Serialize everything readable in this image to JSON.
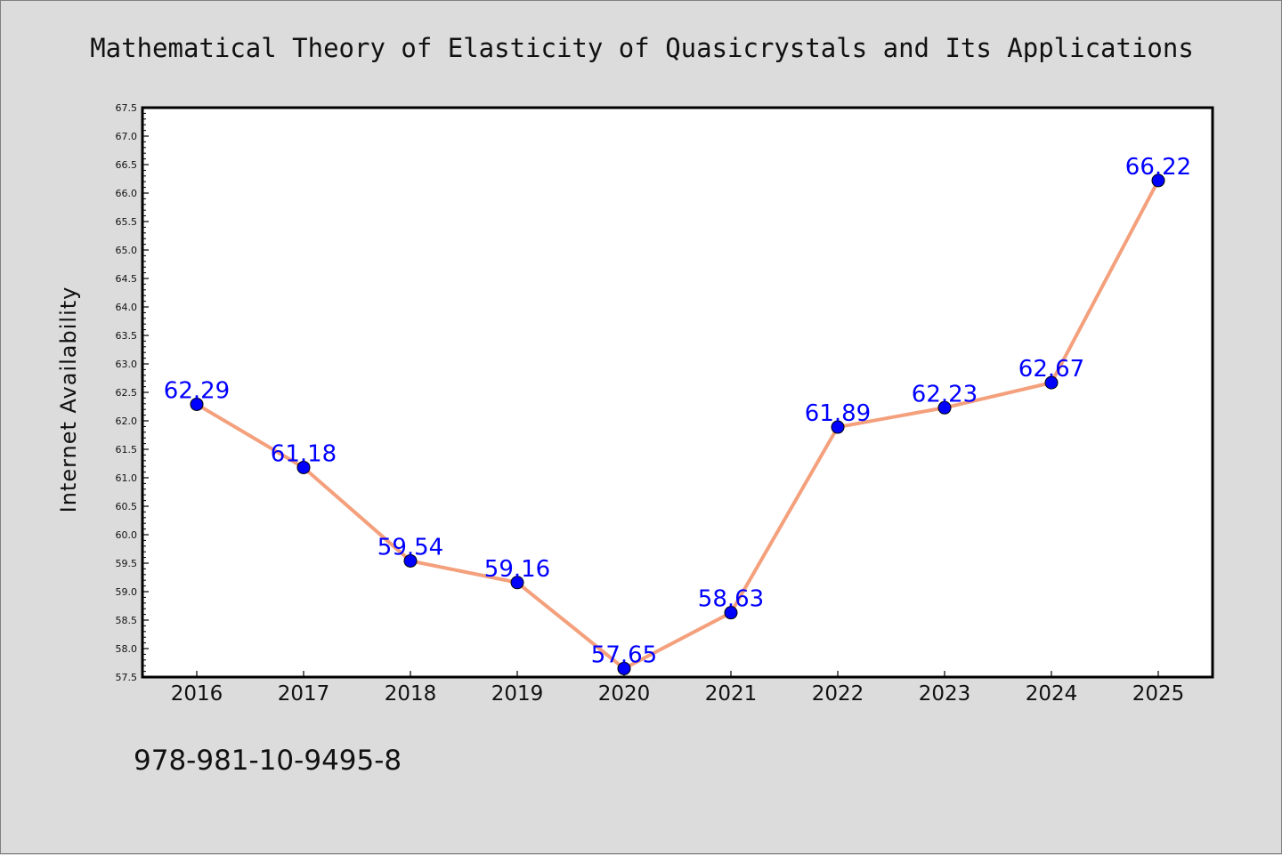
{
  "isbn": "978-981-10-9495-8",
  "colors": {
    "background": "#dcdcdc",
    "plot_background": "#ffffff",
    "line": "#f4a07c",
    "marker": "#0000ff",
    "label": "#0000ff"
  },
  "chart_data": {
    "type": "line",
    "title": "Mathematical Theory of Elasticity of Quasicrystals and Its Applications",
    "xlabel": "",
    "ylabel": "Internet Availability",
    "categories": [
      "2016",
      "2017",
      "2018",
      "2019",
      "2020",
      "2021",
      "2022",
      "2023",
      "2024",
      "2025"
    ],
    "series": [
      {
        "values": [
          62.29,
          61.18,
          59.54,
          59.16,
          57.65,
          58.63,
          61.89,
          62.23,
          62.67,
          66.22
        ],
        "labels": [
          "62.29",
          "61.18",
          "59.54",
          "59.16",
          "57.65",
          "58.63",
          "61.89",
          "62.23",
          "62.67",
          "66.22"
        ]
      }
    ],
    "ylim": [
      57.5,
      67.5
    ],
    "ytick_step": 0.5,
    "grid": false,
    "legend": "none"
  }
}
